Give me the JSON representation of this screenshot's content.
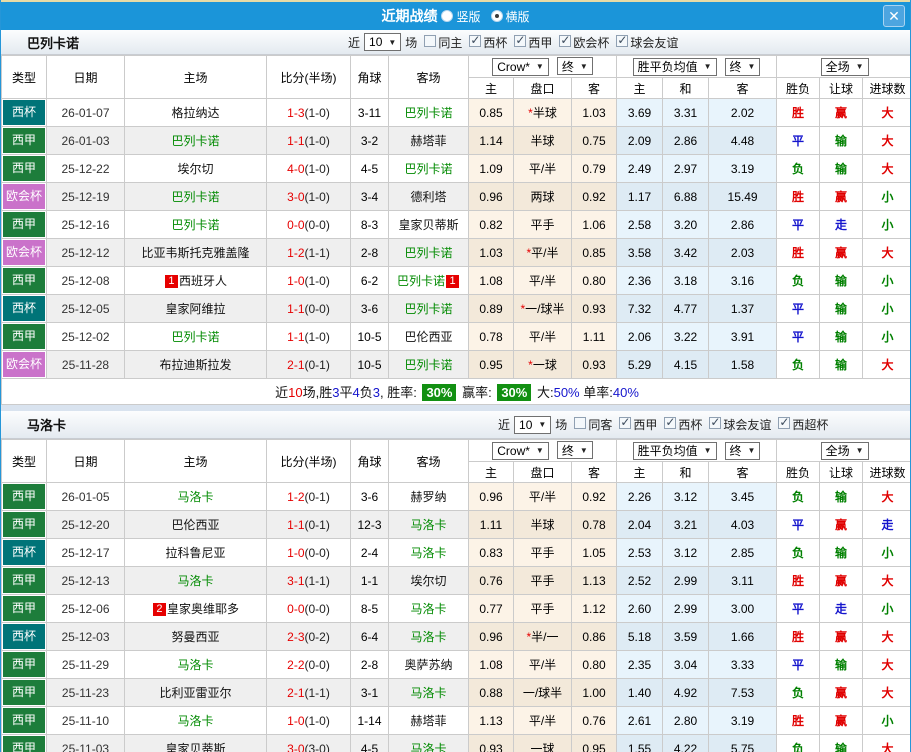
{
  "titlebar": {
    "title": "近期战绩",
    "radios": [
      {
        "label": "竖版",
        "checked": false
      },
      {
        "label": "横版",
        "checked": true
      }
    ],
    "close": "✕"
  },
  "table_header": {
    "type": "类型",
    "date": "日期",
    "home": "主场",
    "score": "比分(半场)",
    "corner": "角球",
    "away": "客场",
    "odds_select": "Crow*",
    "final_select": "终",
    "avg_select": "胜平负均值",
    "final_select2": "终",
    "full_select": "全场",
    "sub": [
      "主",
      "盘口",
      "客",
      "主",
      "和",
      "客",
      "胜负",
      "让球",
      "进球数"
    ]
  },
  "type_colors": {
    "西甲": "#1d7d3b",
    "西杯": "#007478",
    "欧会杯": "#ca72ca"
  },
  "result_colors": {
    "胜": "#e00000",
    "平": "#1515cd",
    "负": "#008000",
    "赢": "#e00000",
    "输": "#008000",
    "走": "#1515cd",
    "大": "#e00000",
    "小": "#008000"
  },
  "sections": [
    {
      "team": "巴列卡诺",
      "filters": {
        "near": "近",
        "count": "10",
        "games": "场",
        "same": {
          "label": "同主",
          "checked": false
        },
        "comps": [
          {
            "label": "西杯",
            "checked": true
          },
          {
            "label": "西甲",
            "checked": true
          },
          {
            "label": "欧会杯",
            "checked": true
          },
          {
            "label": "球会友谊",
            "checked": true
          }
        ]
      },
      "rows": [
        {
          "type": "西杯",
          "date": "26-01-07",
          "home": "格拉纳达",
          "home_badge": "",
          "home_focus": false,
          "score": "1-3",
          "half": "(1-0)",
          "corner": "3-11",
          "away": "巴列卡诺",
          "away_badge": "",
          "away_focus": true,
          "odds_home": "0.85",
          "handicap": "半球",
          "star": true,
          "odds_away": "1.03",
          "avg": [
            "3.69",
            "3.31",
            "2.02"
          ],
          "res": [
            "胜",
            "赢",
            "大"
          ]
        },
        {
          "type": "西甲",
          "date": "26-01-03",
          "home": "巴列卡诺",
          "home_badge": "",
          "home_focus": true,
          "score": "1-1",
          "half": "(1-0)",
          "corner": "3-2",
          "away": "赫塔菲",
          "away_badge": "",
          "away_focus": false,
          "odds_home": "1.14",
          "handicap": "半球",
          "star": false,
          "odds_away": "0.75",
          "avg": [
            "2.09",
            "2.86",
            "4.48"
          ],
          "res": [
            "平",
            "输",
            "大"
          ]
        },
        {
          "type": "西甲",
          "date": "25-12-22",
          "home": "埃尔切",
          "home_badge": "",
          "home_focus": false,
          "score": "4-0",
          "half": "(1-0)",
          "corner": "4-5",
          "away": "巴列卡诺",
          "away_badge": "",
          "away_focus": true,
          "odds_home": "1.09",
          "handicap": "平/半",
          "star": false,
          "odds_away": "0.79",
          "avg": [
            "2.49",
            "2.97",
            "3.19"
          ],
          "res": [
            "负",
            "输",
            "大"
          ]
        },
        {
          "type": "欧会杯",
          "date": "25-12-19",
          "home": "巴列卡诺",
          "home_badge": "",
          "home_focus": true,
          "score": "3-0",
          "half": "(1-0)",
          "corner": "3-4",
          "away": "德利塔",
          "away_badge": "",
          "away_focus": false,
          "odds_home": "0.96",
          "handicap": "两球",
          "star": false,
          "odds_away": "0.92",
          "avg": [
            "1.17",
            "6.88",
            "15.49"
          ],
          "res": [
            "胜",
            "赢",
            "小"
          ]
        },
        {
          "type": "西甲",
          "date": "25-12-16",
          "home": "巴列卡诺",
          "home_badge": "",
          "home_focus": true,
          "score": "0-0",
          "half": "(0-0)",
          "corner": "8-3",
          "away": "皇家贝蒂斯",
          "away_badge": "",
          "away_focus": false,
          "odds_home": "0.82",
          "handicap": "平手",
          "star": false,
          "odds_away": "1.06",
          "avg": [
            "2.58",
            "3.20",
            "2.86"
          ],
          "res": [
            "平",
            "走",
            "小"
          ]
        },
        {
          "type": "欧会杯",
          "date": "25-12-12",
          "home": "比亚韦斯托克雅盖隆",
          "home_badge": "",
          "home_focus": false,
          "score": "1-2",
          "half": "(1-1)",
          "corner": "2-8",
          "away": "巴列卡诺",
          "away_badge": "",
          "away_focus": true,
          "odds_home": "1.03",
          "handicap": "平/半",
          "star": true,
          "odds_away": "0.85",
          "avg": [
            "3.58",
            "3.42",
            "2.03"
          ],
          "res": [
            "胜",
            "赢",
            "大"
          ]
        },
        {
          "type": "西甲",
          "date": "25-12-08",
          "home": "西班牙人",
          "home_badge": "1",
          "home_focus": false,
          "score": "1-0",
          "half": "(1-0)",
          "corner": "6-2",
          "away": "巴列卡诺",
          "away_badge": "1",
          "away_focus": true,
          "odds_home": "1.08",
          "handicap": "平/半",
          "star": false,
          "odds_away": "0.80",
          "avg": [
            "2.36",
            "3.18",
            "3.16"
          ],
          "res": [
            "负",
            "输",
            "小"
          ]
        },
        {
          "type": "西杯",
          "date": "25-12-05",
          "home": "皇家阿维拉",
          "home_badge": "",
          "home_focus": false,
          "score": "1-1",
          "half": "(0-0)",
          "corner": "3-6",
          "away": "巴列卡诺",
          "away_badge": "",
          "away_focus": true,
          "odds_home": "0.89",
          "handicap": "一/球半",
          "star": true,
          "odds_away": "0.93",
          "avg": [
            "7.32",
            "4.77",
            "1.37"
          ],
          "res": [
            "平",
            "输",
            "小"
          ]
        },
        {
          "type": "西甲",
          "date": "25-12-02",
          "home": "巴列卡诺",
          "home_badge": "",
          "home_focus": true,
          "score": "1-1",
          "half": "(1-0)",
          "corner": "10-5",
          "away": "巴伦西亚",
          "away_badge": "",
          "away_focus": false,
          "odds_home": "0.78",
          "handicap": "平/半",
          "star": false,
          "odds_away": "1.11",
          "avg": [
            "2.06",
            "3.22",
            "3.91"
          ],
          "res": [
            "平",
            "输",
            "小"
          ]
        },
        {
          "type": "欧会杯",
          "date": "25-11-28",
          "home": "布拉迪斯拉发",
          "home_badge": "",
          "home_focus": false,
          "score": "2-1",
          "half": "(0-1)",
          "corner": "10-5",
          "away": "巴列卡诺",
          "away_badge": "",
          "away_focus": true,
          "odds_home": "0.95",
          "handicap": "一球",
          "star": true,
          "odds_away": "0.93",
          "avg": [
            "5.29",
            "4.15",
            "1.58"
          ],
          "res": [
            "负",
            "输",
            "大"
          ]
        }
      ],
      "summary_parts": [
        {
          "t": "近",
          "c": "k"
        },
        {
          "t": "10",
          "c": "r"
        },
        {
          "t": "场,胜",
          "c": "k"
        },
        {
          "t": "3",
          "c": "b"
        },
        {
          "t": "平",
          "c": "k"
        },
        {
          "t": "4",
          "c": "b"
        },
        {
          "t": "负",
          "c": "k"
        },
        {
          "t": "3",
          "c": "b"
        },
        {
          "t": ", 胜率: ",
          "c": "k"
        },
        {
          "t": "30%",
          "c": "g"
        },
        {
          "t": " 赢率: ",
          "c": "k"
        },
        {
          "t": "30%",
          "c": "g"
        },
        {
          "t": " 大:",
          "c": "k"
        },
        {
          "t": "50%",
          "c": "b"
        },
        {
          "t": " 单率:",
          "c": "k"
        },
        {
          "t": "40%",
          "c": "b"
        }
      ]
    },
    {
      "team": "马洛卡",
      "filters": {
        "near": "近",
        "count": "10",
        "games": "场",
        "same": {
          "label": "同客",
          "checked": false
        },
        "comps": [
          {
            "label": "西甲",
            "checked": true
          },
          {
            "label": "西杯",
            "checked": true
          },
          {
            "label": "球会友谊",
            "checked": true
          },
          {
            "label": "西超杯",
            "checked": true
          }
        ]
      },
      "rows": [
        {
          "type": "西甲",
          "date": "26-01-05",
          "home": "马洛卡",
          "home_badge": "",
          "home_focus": true,
          "score": "1-2",
          "half": "(0-1)",
          "corner": "3-6",
          "away": "赫罗纳",
          "away_badge": "",
          "away_focus": false,
          "odds_home": "0.96",
          "handicap": "平/半",
          "star": false,
          "odds_away": "0.92",
          "avg": [
            "2.26",
            "3.12",
            "3.45"
          ],
          "res": [
            "负",
            "输",
            "大"
          ]
        },
        {
          "type": "西甲",
          "date": "25-12-20",
          "home": "巴伦西亚",
          "home_badge": "",
          "home_focus": false,
          "score": "1-1",
          "half": "(0-1)",
          "corner": "12-3",
          "away": "马洛卡",
          "away_badge": "",
          "away_focus": true,
          "odds_home": "1.11",
          "handicap": "半球",
          "star": false,
          "odds_away": "0.78",
          "avg": [
            "2.04",
            "3.21",
            "4.03"
          ],
          "res": [
            "平",
            "赢",
            "走"
          ]
        },
        {
          "type": "西杯",
          "date": "25-12-17",
          "home": "拉科鲁尼亚",
          "home_badge": "",
          "home_focus": false,
          "score": "1-0",
          "half": "(0-0)",
          "corner": "2-4",
          "away": "马洛卡",
          "away_badge": "",
          "away_focus": true,
          "odds_home": "0.83",
          "handicap": "平手",
          "star": false,
          "odds_away": "1.05",
          "avg": [
            "2.53",
            "3.12",
            "2.85"
          ],
          "res": [
            "负",
            "输",
            "小"
          ]
        },
        {
          "type": "西甲",
          "date": "25-12-13",
          "home": "马洛卡",
          "home_badge": "",
          "home_focus": true,
          "score": "3-1",
          "half": "(1-1)",
          "corner": "1-1",
          "away": "埃尔切",
          "away_badge": "",
          "away_focus": false,
          "odds_home": "0.76",
          "handicap": "平手",
          "star": false,
          "odds_away": "1.13",
          "avg": [
            "2.52",
            "2.99",
            "3.11"
          ],
          "res": [
            "胜",
            "赢",
            "大"
          ]
        },
        {
          "type": "西甲",
          "date": "25-12-06",
          "home": "皇家奥维耶多",
          "home_badge": "2",
          "home_focus": false,
          "score": "0-0",
          "half": "(0-0)",
          "corner": "8-5",
          "away": "马洛卡",
          "away_badge": "",
          "away_focus": true,
          "odds_home": "0.77",
          "handicap": "平手",
          "star": false,
          "odds_away": "1.12",
          "avg": [
            "2.60",
            "2.99",
            "3.00"
          ],
          "res": [
            "平",
            "走",
            "小"
          ]
        },
        {
          "type": "西杯",
          "date": "25-12-03",
          "home": "努曼西亚",
          "home_badge": "",
          "home_focus": false,
          "score": "2-3",
          "half": "(0-2)",
          "corner": "6-4",
          "away": "马洛卡",
          "away_badge": "",
          "away_focus": true,
          "odds_home": "0.96",
          "handicap": "半/一",
          "star": true,
          "odds_away": "0.86",
          "avg": [
            "5.18",
            "3.59",
            "1.66"
          ],
          "res": [
            "胜",
            "赢",
            "大"
          ]
        },
        {
          "type": "西甲",
          "date": "25-11-29",
          "home": "马洛卡",
          "home_badge": "",
          "home_focus": true,
          "score": "2-2",
          "half": "(0-0)",
          "corner": "2-8",
          "away": "奥萨苏纳",
          "away_badge": "",
          "away_focus": false,
          "odds_home": "1.08",
          "handicap": "平/半",
          "star": false,
          "odds_away": "0.80",
          "avg": [
            "2.35",
            "3.04",
            "3.33"
          ],
          "res": [
            "平",
            "输",
            "大"
          ]
        },
        {
          "type": "西甲",
          "date": "25-11-23",
          "home": "比利亚雷亚尔",
          "home_badge": "",
          "home_focus": false,
          "score": "2-1",
          "half": "(1-1)",
          "corner": "3-1",
          "away": "马洛卡",
          "away_badge": "",
          "away_focus": true,
          "odds_home": "0.88",
          "handicap": "一/球半",
          "star": false,
          "odds_away": "1.00",
          "avg": [
            "1.40",
            "4.92",
            "7.53"
          ],
          "res": [
            "负",
            "赢",
            "大"
          ]
        },
        {
          "type": "西甲",
          "date": "25-11-10",
          "home": "马洛卡",
          "home_badge": "",
          "home_focus": true,
          "score": "1-0",
          "half": "(1-0)",
          "corner": "1-14",
          "away": "赫塔菲",
          "away_badge": "",
          "away_focus": false,
          "odds_home": "1.13",
          "handicap": "平/半",
          "star": false,
          "odds_away": "0.76",
          "avg": [
            "2.61",
            "2.80",
            "3.19"
          ],
          "res": [
            "胜",
            "赢",
            "小"
          ]
        },
        {
          "type": "西甲",
          "date": "25-11-03",
          "home": "皇家贝蒂斯",
          "home_badge": "",
          "home_focus": false,
          "score": "3-0",
          "half": "(3-0)",
          "corner": "4-5",
          "away": "马洛卡",
          "away_badge": "",
          "away_focus": true,
          "odds_home": "0.93",
          "handicap": "一球",
          "star": false,
          "odds_away": "0.95",
          "avg": [
            "1.55",
            "4.22",
            "5.75"
          ],
          "res": [
            "负",
            "输",
            "大"
          ]
        }
      ],
      "summary_parts": null
    }
  ]
}
